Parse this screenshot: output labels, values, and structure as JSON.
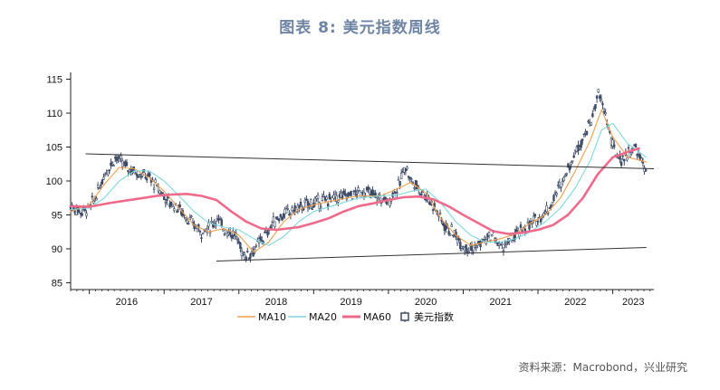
{
  "page": {
    "title": "图表 8:  美元指数周线",
    "source": "资料来源：Macrobond，兴业研究"
  },
  "chart_data": {
    "type": "line",
    "title": "图表 8:  美元指数周线",
    "xlabel": "",
    "ylabel": "",
    "ylim": [
      84,
      116
    ],
    "xlim": [
      2015.75,
      2023.55
    ],
    "yticks": [
      85,
      90,
      95,
      100,
      105,
      110,
      115
    ],
    "xticks": [
      2016,
      2017,
      2018,
      2019,
      2020,
      2021,
      2022,
      2023
    ],
    "xtick_labels": [
      "2016",
      "2017",
      "2018",
      "2019",
      "2020",
      "2021",
      "2022",
      "2023"
    ],
    "legend_position": "bottom-center",
    "colors": {
      "MA10": "#f0a050",
      "MA20": "#7fd8e0",
      "MA60": "#ef6a8a",
      "candles": "#3c4a66",
      "trend": "#333333"
    },
    "series": [
      {
        "name": "美元指数",
        "style": "candlestick",
        "x": [
          2015.75,
          2015.9,
          2016.0,
          2016.1,
          2016.2,
          2016.35,
          2016.5,
          2016.6,
          2016.7,
          2016.8,
          2016.87,
          2016.95,
          2017.05,
          2017.2,
          2017.35,
          2017.5,
          2017.6,
          2017.7,
          2017.8,
          2017.95,
          2018.05,
          2018.1,
          2018.2,
          2018.35,
          2018.5,
          2018.7,
          2018.9,
          2019.1,
          2019.3,
          2019.5,
          2019.7,
          2019.85,
          2020.0,
          2020.15,
          2020.22,
          2020.3,
          2020.45,
          2020.6,
          2020.75,
          2020.9,
          2021.0,
          2021.15,
          2021.25,
          2021.4,
          2021.5,
          2021.6,
          2021.75,
          2021.9,
          2022.0,
          2022.15,
          2022.3,
          2022.45,
          2022.6,
          2022.72,
          2022.8,
          2022.9,
          2023.0,
          2023.1,
          2023.2,
          2023.3,
          2023.4,
          2023.45
        ],
        "values": [
          96.2,
          95.5,
          96.0,
          98.0,
          101.0,
          103.5,
          102.0,
          101.5,
          101.0,
          100.5,
          99.5,
          98.5,
          97.0,
          96.0,
          94.0,
          92.5,
          93.0,
          94.5,
          93.0,
          92.0,
          89.5,
          89.0,
          89.8,
          92.0,
          94.5,
          95.5,
          96.5,
          97.0,
          97.5,
          98.0,
          98.5,
          97.5,
          97.0,
          99.5,
          102.5,
          100.0,
          98.5,
          96.5,
          93.5,
          92.0,
          90.5,
          90.0,
          91.0,
          92.0,
          90.2,
          90.8,
          92.5,
          93.5,
          94.5,
          96.0,
          99.5,
          103.0,
          106.5,
          109.0,
          113.0,
          110.0,
          105.0,
          103.0,
          104.0,
          105.0,
          102.5,
          101.5
        ]
      },
      {
        "name": "MA10",
        "x": [
          2015.75,
          2016.0,
          2016.2,
          2016.4,
          2016.6,
          2016.8,
          2017.0,
          2017.2,
          2017.4,
          2017.6,
          2017.8,
          2018.0,
          2018.2,
          2018.4,
          2018.6,
          2018.8,
          2019.0,
          2019.3,
          2019.6,
          2019.9,
          2020.15,
          2020.3,
          2020.5,
          2020.7,
          2020.9,
          2021.1,
          2021.3,
          2021.5,
          2021.7,
          2021.9,
          2022.1,
          2022.3,
          2022.5,
          2022.7,
          2022.85,
          2023.0,
          2023.2,
          2023.45
        ],
        "values": [
          95.5,
          96.5,
          99.5,
          102.0,
          101.8,
          100.5,
          98.5,
          96.0,
          93.5,
          92.5,
          93.0,
          92.0,
          89.5,
          91.0,
          94.0,
          95.8,
          96.5,
          97.2,
          97.8,
          97.8,
          99.0,
          99.8,
          98.2,
          94.5,
          92.0,
          90.5,
          91.0,
          91.5,
          92.2,
          93.8,
          95.0,
          97.5,
          101.5,
          106.0,
          110.5,
          106.5,
          103.5,
          102.8
        ]
      },
      {
        "name": "MA20",
        "x": [
          2015.75,
          2016.0,
          2016.2,
          2016.4,
          2016.6,
          2016.8,
          2017.0,
          2017.2,
          2017.4,
          2017.6,
          2017.8,
          2018.0,
          2018.2,
          2018.4,
          2018.6,
          2018.8,
          2019.0,
          2019.3,
          2019.6,
          2019.9,
          2020.15,
          2020.3,
          2020.5,
          2020.7,
          2020.9,
          2021.1,
          2021.3,
          2021.5,
          2021.7,
          2021.9,
          2022.1,
          2022.3,
          2022.5,
          2022.7,
          2022.85,
          2023.0,
          2023.2,
          2023.45
        ],
        "values": [
          95.8,
          96.0,
          97.5,
          100.0,
          101.5,
          101.5,
          100.0,
          97.8,
          95.5,
          93.8,
          93.2,
          92.8,
          91.5,
          90.5,
          91.8,
          94.0,
          95.5,
          96.5,
          97.5,
          97.8,
          98.0,
          98.5,
          98.8,
          96.8,
          94.0,
          92.0,
          91.0,
          91.0,
          91.5,
          92.5,
          94.0,
          96.0,
          99.0,
          103.0,
          107.5,
          108.5,
          105.5,
          103.5
        ]
      },
      {
        "name": "MA60",
        "x": [
          2015.75,
          2016.0,
          2016.3,
          2016.6,
          2016.9,
          2017.1,
          2017.3,
          2017.5,
          2017.7,
          2017.9,
          2018.1,
          2018.3,
          2018.5,
          2018.8,
          2019.0,
          2019.2,
          2019.4,
          2019.6,
          2019.8,
          2020.0,
          2020.2,
          2020.4,
          2020.6,
          2020.8,
          2021.0,
          2021.2,
          2021.4,
          2021.6,
          2021.8,
          2022.0,
          2022.2,
          2022.4,
          2022.6,
          2022.8,
          2023.0,
          2023.2,
          2023.35
        ],
        "values": [
          96.3,
          96.2,
          96.8,
          97.3,
          97.8,
          98.0,
          98.1,
          97.8,
          97.2,
          95.5,
          94.0,
          93.0,
          92.8,
          93.2,
          93.8,
          94.5,
          95.5,
          96.3,
          96.7,
          97.2,
          97.6,
          97.7,
          97.3,
          96.3,
          95.0,
          93.8,
          92.6,
          92.2,
          92.4,
          92.8,
          93.5,
          95.0,
          97.5,
          101.0,
          103.5,
          104.3,
          104.8
        ]
      }
    ],
    "trend_lines": [
      {
        "name": "upper-trend",
        "x": [
          2015.95,
          2023.55
        ],
        "values": [
          104.0,
          101.8
        ]
      },
      {
        "name": "lower-trend",
        "x": [
          2017.7,
          2023.45
        ],
        "values": [
          88.2,
          90.2
        ]
      }
    ],
    "legend": [
      {
        "label": "MA10",
        "kind": "line",
        "color_key": "MA10"
      },
      {
        "label": "MA20",
        "kind": "line",
        "color_key": "MA20"
      },
      {
        "label": "MA60",
        "kind": "line",
        "color_key": "MA60"
      },
      {
        "label": "美元指数",
        "kind": "candle",
        "color_key": "candles"
      }
    ]
  }
}
